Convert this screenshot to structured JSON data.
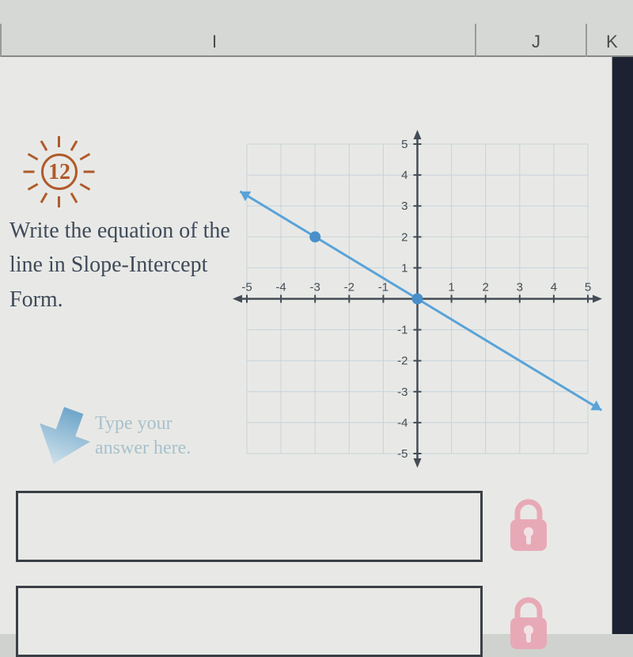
{
  "columns": {
    "I": "I",
    "J": "J",
    "K": "K"
  },
  "problem": {
    "number": "12",
    "text": "Write the equation of the line in Slope-Intercept Form.",
    "hint_line1": "Type your",
    "hint_line2": "answer here."
  },
  "chart": {
    "type": "line",
    "xlim": [
      -5,
      5
    ],
    "ylim": [
      -5,
      5
    ],
    "tick_step": 1,
    "x_ticks_labeled": [
      -5,
      -4,
      -3,
      -2,
      -1,
      1,
      2,
      3,
      4,
      5
    ],
    "y_ticks_labeled": [
      -5,
      -4,
      -3,
      -2,
      -1,
      1,
      2,
      3,
      4,
      5
    ],
    "grid_color": "#c8d2db",
    "axis_color": "#444c55",
    "line_color": "#5aa3d8",
    "point_color": "#4a8fc9",
    "background_color": "#e8e9e6",
    "label_fontsize": 15,
    "line_width": 3,
    "points": [
      [
        -3,
        2
      ],
      [
        0,
        0
      ]
    ],
    "line_endpoints": [
      [
        -5.2,
        3.47
      ],
      [
        5.4,
        -3.6
      ]
    ]
  },
  "colors": {
    "sun": "#b05a2a",
    "arrow_fill_top": "#6fa6c9",
    "arrow_fill_bottom": "#cde0eb",
    "lock_body": "#e8a9b6",
    "lock_keyhole": "#f2e2e6",
    "answer_border": "#3a3f45"
  }
}
